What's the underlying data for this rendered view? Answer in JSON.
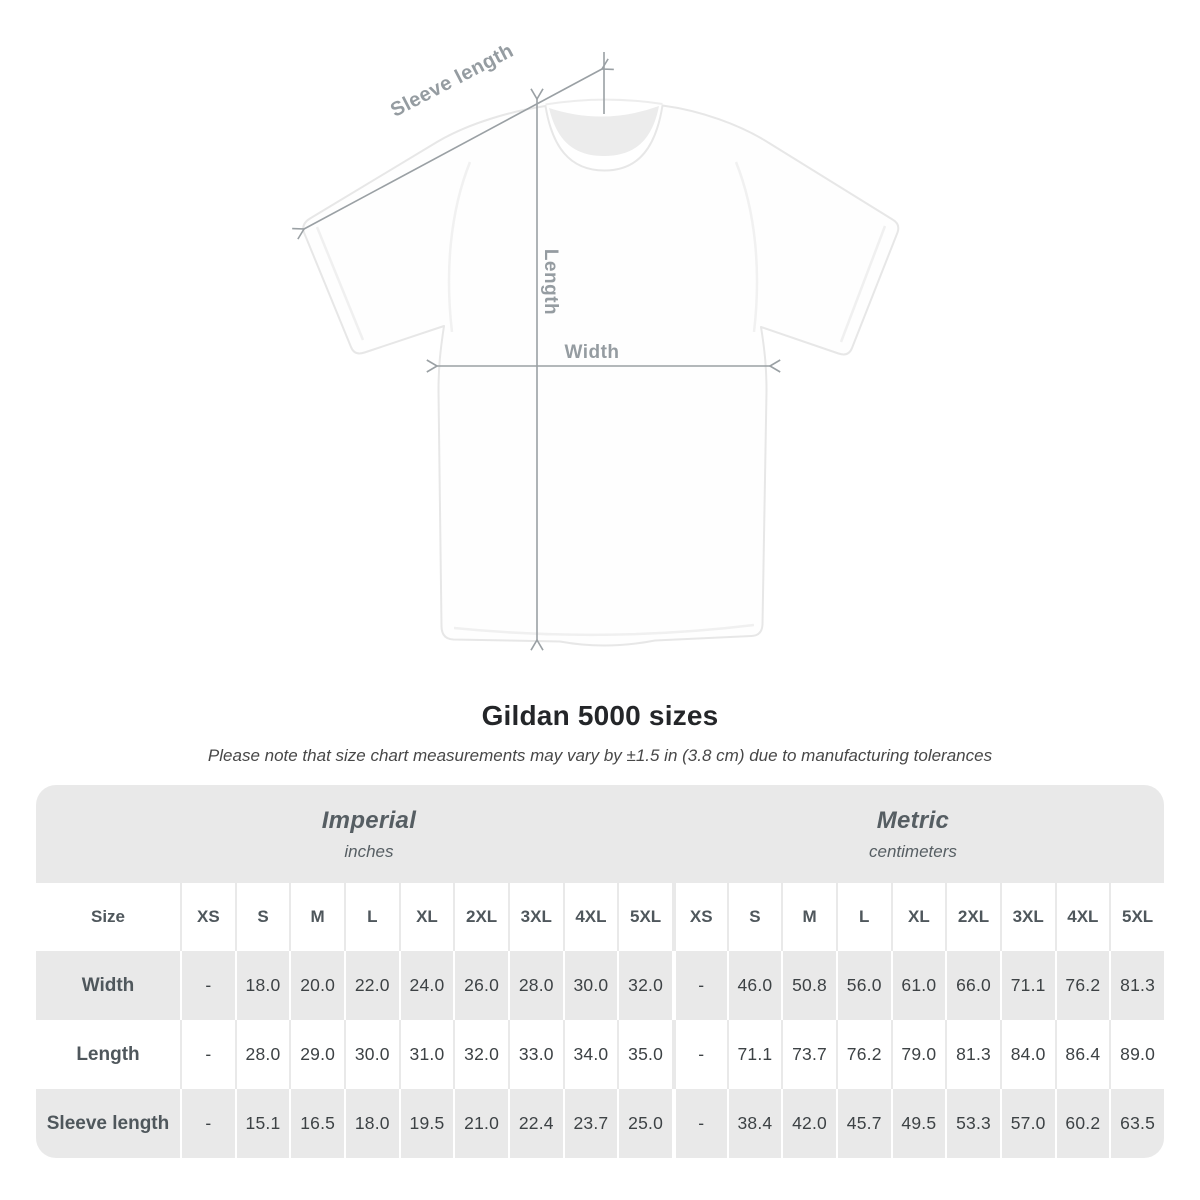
{
  "title": "Gildan 5000 sizes",
  "subtitle": "Please note that size chart measurements may vary by ±1.5 in (3.8 cm) due to manufacturing tolerances",
  "diagram": {
    "sleeve_label": "Sleeve length",
    "length_label": "Length",
    "width_label": "Width",
    "annotation_color": "#959ca1"
  },
  "table": {
    "size_header": "Size",
    "unit_groups": [
      {
        "label": "Imperial",
        "sublabel": "inches"
      },
      {
        "label": "Metric",
        "sublabel": "centimeters"
      }
    ],
    "sizes": [
      "XS",
      "S",
      "M",
      "L",
      "XL",
      "2XL",
      "3XL",
      "4XL",
      "5XL"
    ],
    "rows": [
      {
        "label": "Width",
        "imperial": [
          "-",
          "18.0",
          "20.0",
          "22.0",
          "24.0",
          "26.0",
          "28.0",
          "30.0",
          "32.0"
        ],
        "metric": [
          "-",
          "46.0",
          "50.8",
          "56.0",
          "61.0",
          "66.0",
          "71.1",
          "76.2",
          "81.3"
        ]
      },
      {
        "label": "Length",
        "imperial": [
          "-",
          "28.0",
          "29.0",
          "30.0",
          "31.0",
          "32.0",
          "33.0",
          "34.0",
          "35.0"
        ],
        "metric": [
          "-",
          "71.1",
          "73.7",
          "76.2",
          "79.0",
          "81.3",
          "84.0",
          "86.4",
          "89.0"
        ]
      },
      {
        "label": "Sleeve length",
        "imperial": [
          "-",
          "15.1",
          "16.5",
          "18.0",
          "19.5",
          "21.0",
          "22.4",
          "23.7",
          "25.0"
        ],
        "metric": [
          "-",
          "38.4",
          "42.0",
          "45.7",
          "49.5",
          "53.3",
          "57.0",
          "60.2",
          "63.5"
        ]
      }
    ],
    "colors": {
      "stripe": "#e9e9e9",
      "header_text": "#4f575c",
      "value_text": "#3d4245"
    }
  },
  "chart_data": {
    "type": "table",
    "title": "Gildan 5000 sizes",
    "note": "Please note that size chart measurements may vary by ±1.5 in (3.8 cm) due to manufacturing tolerances",
    "unit_groups": [
      {
        "name": "Imperial",
        "unit": "inches"
      },
      {
        "name": "Metric",
        "unit": "centimeters"
      }
    ],
    "sizes": [
      "XS",
      "S",
      "M",
      "L",
      "XL",
      "2XL",
      "3XL",
      "4XL",
      "5XL"
    ],
    "rows": [
      {
        "measure": "Width",
        "imperial_in": [
          null,
          18.0,
          20.0,
          22.0,
          24.0,
          26.0,
          28.0,
          30.0,
          32.0
        ],
        "metric_cm": [
          null,
          46.0,
          50.8,
          56.0,
          61.0,
          66.0,
          71.1,
          76.2,
          81.3
        ]
      },
      {
        "measure": "Length",
        "imperial_in": [
          null,
          28.0,
          29.0,
          30.0,
          31.0,
          32.0,
          33.0,
          34.0,
          35.0
        ],
        "metric_cm": [
          null,
          71.1,
          73.7,
          76.2,
          79.0,
          81.3,
          84.0,
          86.4,
          89.0
        ]
      },
      {
        "measure": "Sleeve length",
        "imperial_in": [
          null,
          15.1,
          16.5,
          18.0,
          19.5,
          21.0,
          22.4,
          23.7,
          25.0
        ],
        "metric_cm": [
          null,
          38.4,
          42.0,
          45.7,
          49.5,
          53.3,
          57.0,
          60.2,
          63.5
        ]
      }
    ]
  }
}
